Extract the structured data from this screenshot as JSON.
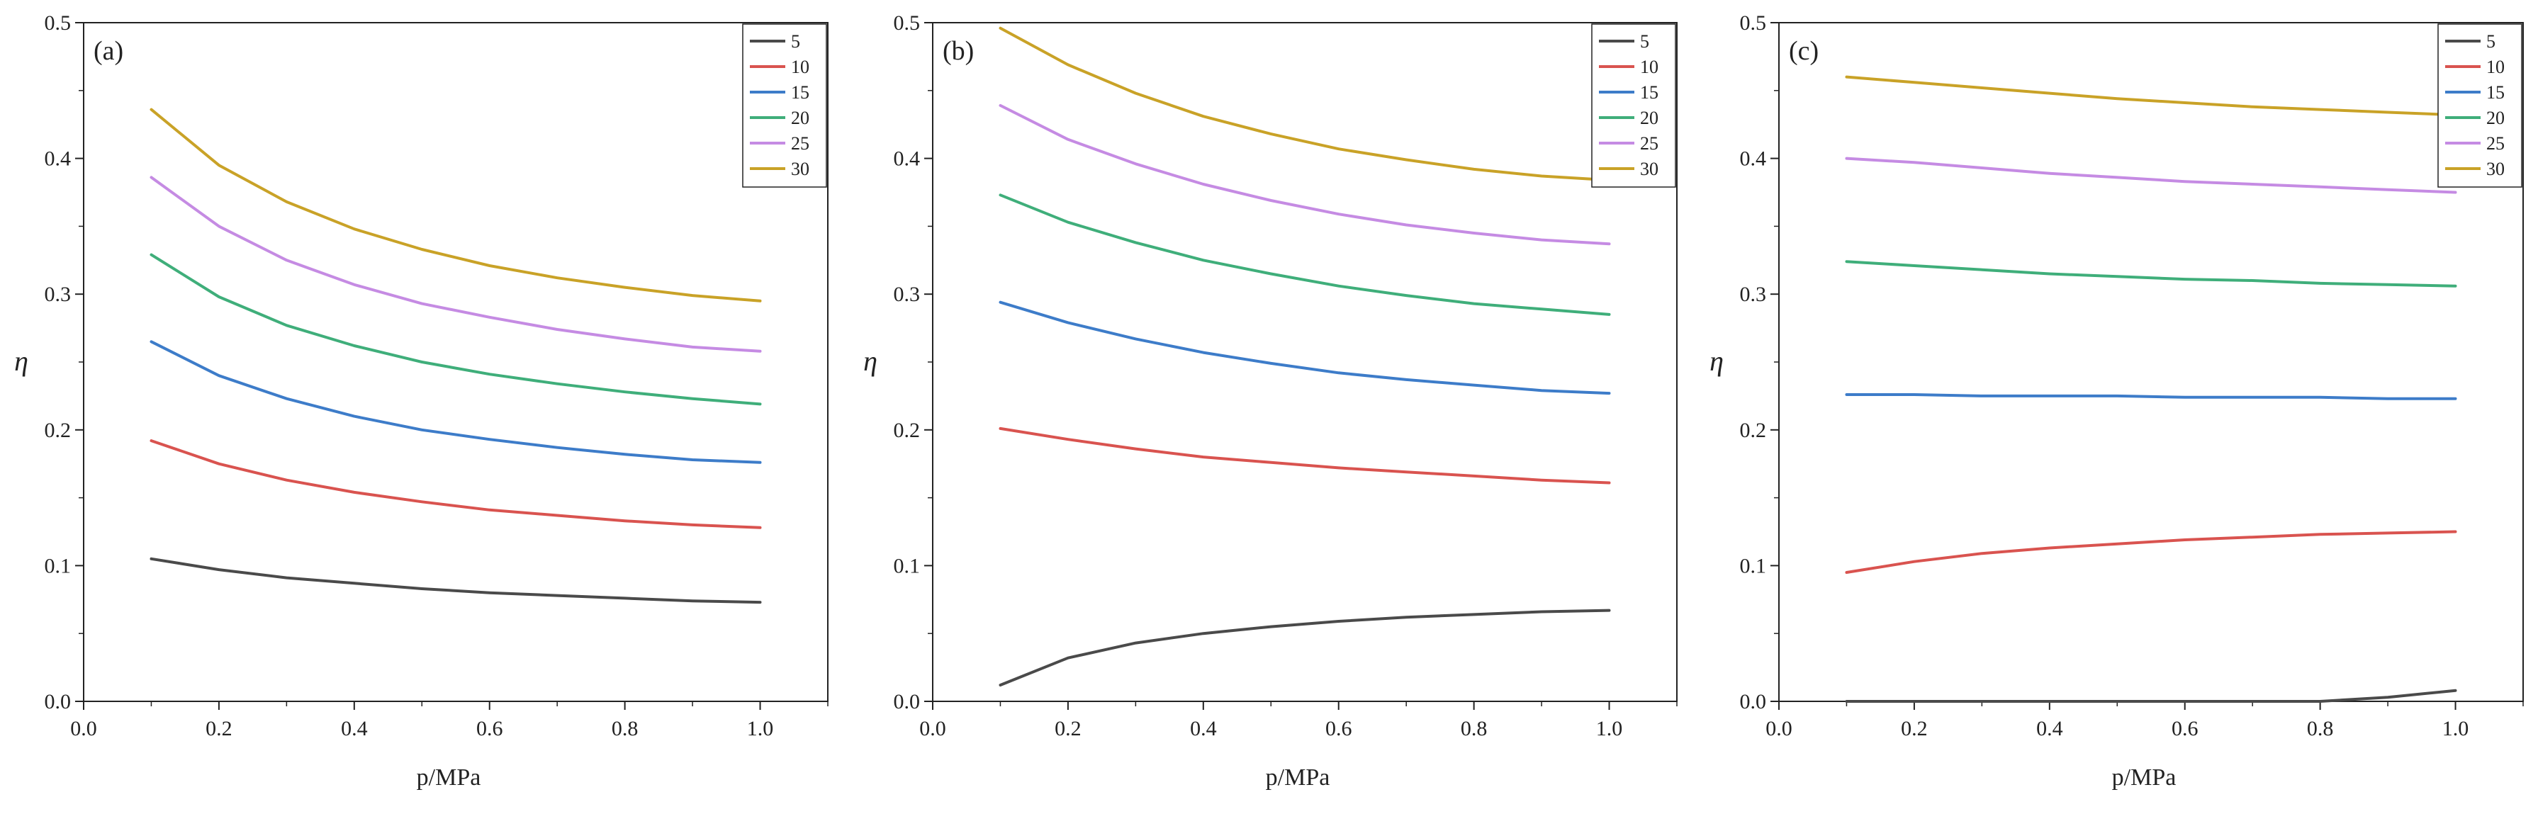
{
  "colors": {
    "5": "#4a4a4a",
    "10": "#d9534f",
    "15": "#3d7cc9",
    "20": "#3fae7a",
    "25": "#c58be3",
    "30": "#c9a227",
    "axis": "#222222"
  },
  "chart_data": [
    {
      "type": "line",
      "panel_label": "(a)",
      "xlabel": "p/MPa",
      "ylabel": "η",
      "xlim": [
        0.0,
        1.1
      ],
      "ylim": [
        0.0,
        0.5
      ],
      "xticks": [
        "0.0",
        "0.2",
        "0.4",
        "0.6",
        "0.8",
        "1.0"
      ],
      "yticks": [
        "0.0",
        "0.1",
        "0.2",
        "0.3",
        "0.4",
        "0.5"
      ],
      "legend_position": "top-right",
      "x": [
        0.1,
        0.2,
        0.3,
        0.4,
        0.5,
        0.6,
        0.7,
        0.8,
        0.9,
        1.0
      ],
      "series": [
        {
          "name": "5",
          "values": [
            0.105,
            0.097,
            0.091,
            0.087,
            0.083,
            0.08,
            0.078,
            0.076,
            0.074,
            0.073
          ]
        },
        {
          "name": "10",
          "values": [
            0.192,
            0.175,
            0.163,
            0.154,
            0.147,
            0.141,
            0.137,
            0.133,
            0.13,
            0.128
          ]
        },
        {
          "name": "15",
          "values": [
            0.265,
            0.24,
            0.223,
            0.21,
            0.2,
            0.193,
            0.187,
            0.182,
            0.178,
            0.176
          ]
        },
        {
          "name": "20",
          "values": [
            0.329,
            0.298,
            0.277,
            0.262,
            0.25,
            0.241,
            0.234,
            0.228,
            0.223,
            0.219
          ]
        },
        {
          "name": "25",
          "values": [
            0.386,
            0.35,
            0.325,
            0.307,
            0.293,
            0.283,
            0.274,
            0.267,
            0.261,
            0.258
          ]
        },
        {
          "name": "30",
          "values": [
            0.436,
            0.395,
            0.368,
            0.348,
            0.333,
            0.321,
            0.312,
            0.305,
            0.299,
            0.295
          ]
        }
      ]
    },
    {
      "type": "line",
      "panel_label": "(b)",
      "xlabel": "p/MPa",
      "ylabel": "η",
      "xlim": [
        0.0,
        1.1
      ],
      "ylim": [
        0.0,
        0.5
      ],
      "xticks": [
        "0.0",
        "0.2",
        "0.4",
        "0.6",
        "0.8",
        "1.0"
      ],
      "yticks": [
        "0.0",
        "0.1",
        "0.2",
        "0.3",
        "0.4",
        "0.5"
      ],
      "legend_position": "top-right",
      "x": [
        0.1,
        0.2,
        0.3,
        0.4,
        0.5,
        0.6,
        0.7,
        0.8,
        0.9,
        1.0
      ],
      "series": [
        {
          "name": "5",
          "values": [
            0.012,
            0.032,
            0.043,
            0.05,
            0.055,
            0.059,
            0.062,
            0.064,
            0.066,
            0.067
          ]
        },
        {
          "name": "10",
          "values": [
            0.201,
            0.193,
            0.186,
            0.18,
            0.176,
            0.172,
            0.169,
            0.166,
            0.163,
            0.161
          ]
        },
        {
          "name": "15",
          "values": [
            0.294,
            0.279,
            0.267,
            0.257,
            0.249,
            0.242,
            0.237,
            0.233,
            0.229,
            0.227
          ]
        },
        {
          "name": "20",
          "values": [
            0.373,
            0.353,
            0.338,
            0.325,
            0.315,
            0.306,
            0.299,
            0.293,
            0.289,
            0.285
          ]
        },
        {
          "name": "25",
          "values": [
            0.439,
            0.414,
            0.396,
            0.381,
            0.369,
            0.359,
            0.351,
            0.345,
            0.34,
            0.337
          ]
        },
        {
          "name": "30",
          "values": [
            0.496,
            0.469,
            0.448,
            0.431,
            0.418,
            0.407,
            0.399,
            0.392,
            0.387,
            0.384
          ]
        }
      ]
    },
    {
      "type": "line",
      "panel_label": "(c)",
      "xlabel": "p/MPa",
      "ylabel": "η",
      "xlim": [
        0.0,
        1.1
      ],
      "ylim": [
        0.0,
        0.5
      ],
      "xticks": [
        "0.0",
        "0.2",
        "0.4",
        "0.6",
        "0.8",
        "1.0"
      ],
      "yticks": [
        "0.0",
        "0.1",
        "0.2",
        "0.3",
        "0.4",
        "0.5"
      ],
      "legend_position": "top-right",
      "x": [
        0.1,
        0.2,
        0.3,
        0.4,
        0.5,
        0.6,
        0.7,
        0.8,
        0.9,
        1.0
      ],
      "series": [
        {
          "name": "5",
          "values": [
            0.0,
            0.0,
            0.0,
            0.0,
            0.0,
            0.0,
            0.0,
            0.0,
            0.003,
            0.008
          ]
        },
        {
          "name": "10",
          "values": [
            0.095,
            0.103,
            0.109,
            0.113,
            0.116,
            0.119,
            0.121,
            0.123,
            0.124,
            0.125
          ]
        },
        {
          "name": "15",
          "values": [
            0.226,
            0.226,
            0.225,
            0.225,
            0.225,
            0.224,
            0.224,
            0.224,
            0.223,
            0.223
          ]
        },
        {
          "name": "20",
          "values": [
            0.324,
            0.321,
            0.318,
            0.315,
            0.313,
            0.311,
            0.31,
            0.308,
            0.307,
            0.306
          ]
        },
        {
          "name": "25",
          "values": [
            0.4,
            0.397,
            0.393,
            0.389,
            0.386,
            0.383,
            0.381,
            0.379,
            0.377,
            0.375
          ]
        },
        {
          "name": "30",
          "values": [
            0.46,
            0.456,
            0.452,
            0.448,
            0.444,
            0.441,
            0.438,
            0.436,
            0.434,
            0.432
          ]
        }
      ]
    }
  ]
}
